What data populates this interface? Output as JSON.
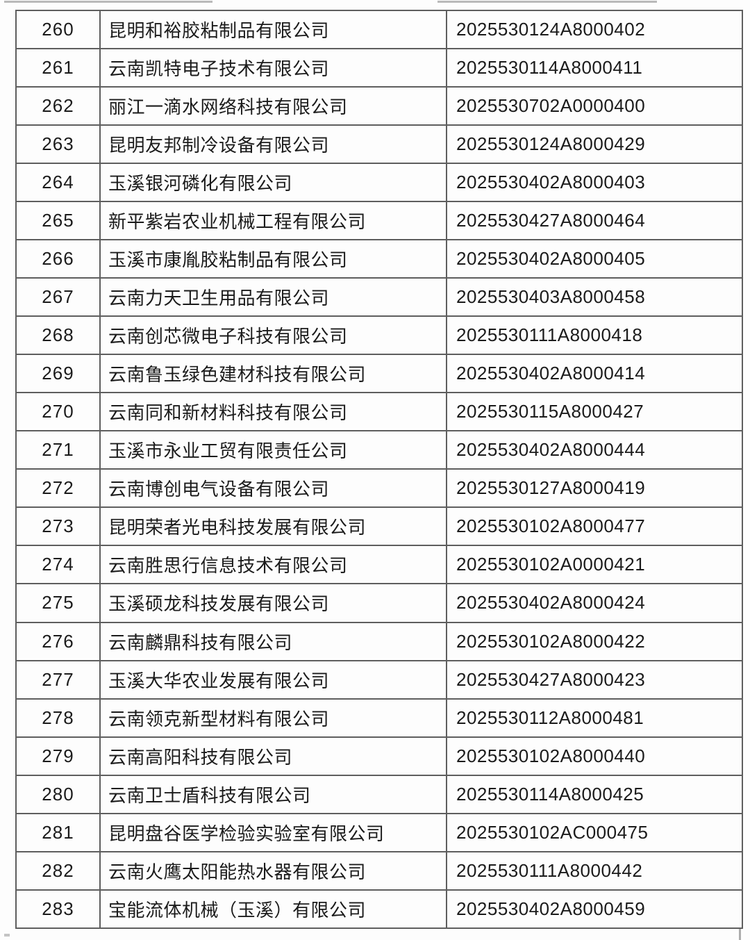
{
  "table": {
    "rows": [
      {
        "no": "260",
        "company": "昆明和裕胶粘制品有限公司",
        "code": "2025530124A8000402"
      },
      {
        "no": "261",
        "company": "云南凯特电子技术有限公司",
        "code": "2025530114A8000411"
      },
      {
        "no": "262",
        "company": "丽江一滴水网络科技有限公司",
        "code": "2025530702A0000400"
      },
      {
        "no": "263",
        "company": "昆明友邦制冷设备有限公司",
        "code": "2025530124A8000429"
      },
      {
        "no": "264",
        "company": "玉溪银河磷化有限公司",
        "code": "2025530402A8000403"
      },
      {
        "no": "265",
        "company": "新平紫岩农业机械工程有限公司",
        "code": "2025530427A8000464"
      },
      {
        "no": "266",
        "company": "玉溪市康胤胶粘制品有限公司",
        "code": "2025530402A8000405"
      },
      {
        "no": "267",
        "company": "云南力天卫生用品有限公司",
        "code": "2025530403A8000458"
      },
      {
        "no": "268",
        "company": "云南创芯微电子科技有限公司",
        "code": "2025530111A8000418"
      },
      {
        "no": "269",
        "company": "云南鲁玉绿色建材科技有限公司",
        "code": "2025530402A8000414"
      },
      {
        "no": "270",
        "company": "云南同和新材料科技有限公司",
        "code": "2025530115A8000427"
      },
      {
        "no": "271",
        "company": "玉溪市永业工贸有限责任公司",
        "code": "2025530402A8000444"
      },
      {
        "no": "272",
        "company": "云南博创电气设备有限公司",
        "code": "2025530127A8000419"
      },
      {
        "no": "273",
        "company": "昆明荣者光电科技发展有限公司",
        "code": "2025530102A8000477"
      },
      {
        "no": "274",
        "company": "云南胜思行信息技术有限公司",
        "code": "2025530102A0000421"
      },
      {
        "no": "275",
        "company": "玉溪硕龙科技发展有限公司",
        "code": "2025530402A8000424"
      },
      {
        "no": "276",
        "company": "云南麟鼎科技有限公司",
        "code": "2025530102A8000422"
      },
      {
        "no": "277",
        "company": "玉溪大华农业发展有限公司",
        "code": "2025530427A8000423"
      },
      {
        "no": "278",
        "company": "云南领克新型材料有限公司",
        "code": "2025530112A8000481"
      },
      {
        "no": "279",
        "company": "云南高阳科技有限公司",
        "code": "2025530102A8000440"
      },
      {
        "no": "280",
        "company": "云南卫士盾科技有限公司",
        "code": "2025530114A8000425"
      },
      {
        "no": "281",
        "company": "昆明盘谷医学检验实验室有限公司",
        "code": "2025530102AC000475"
      },
      {
        "no": "282",
        "company": "云南火鹰太阳能热水器有限公司",
        "code": "2025530111A8000442"
      },
      {
        "no": "283",
        "company": "宝能流体机械（玉溪）有限公司",
        "code": "2025530402A8000459"
      }
    ]
  }
}
